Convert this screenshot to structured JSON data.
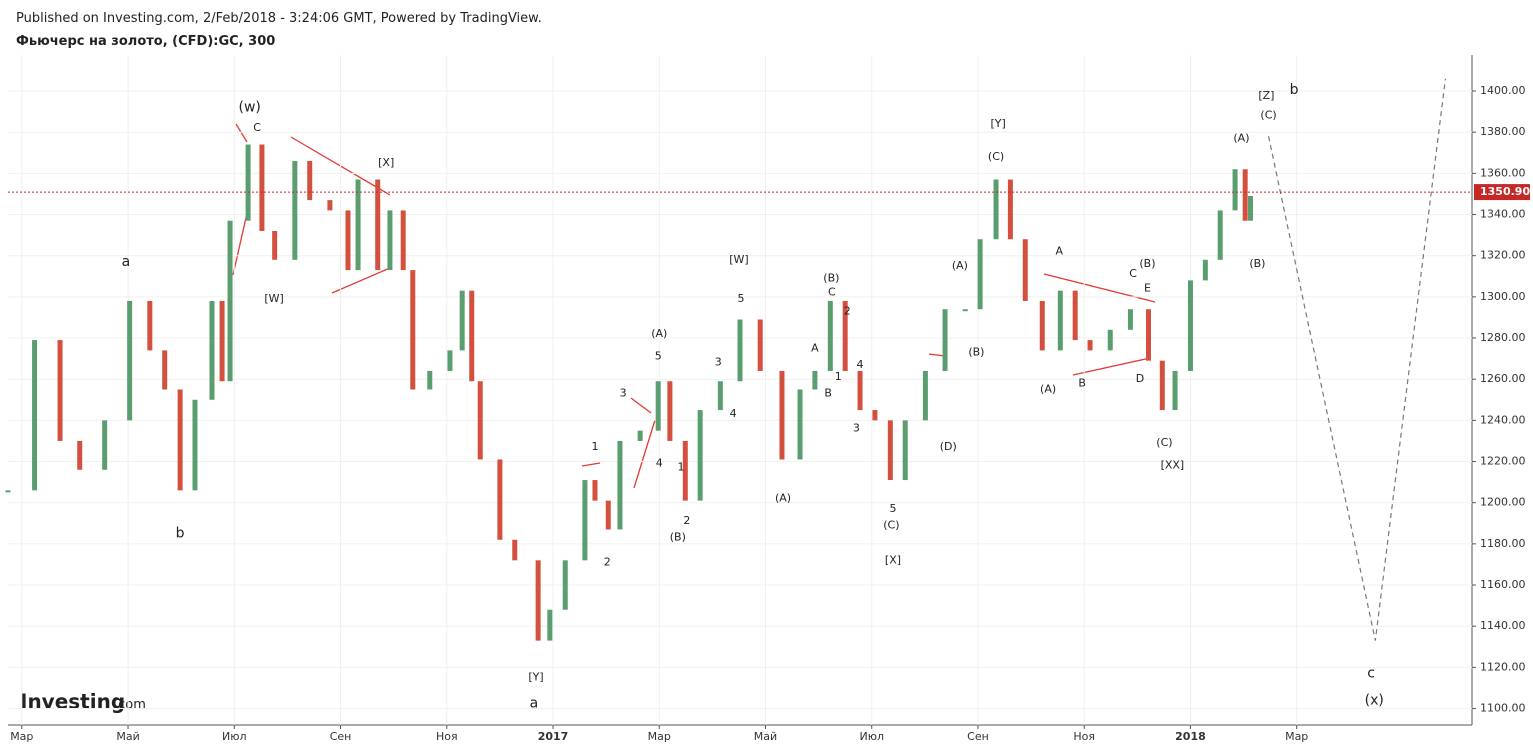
{
  "header": {
    "published": "Published on Investing.com, 2/Feb/2018 - 3:24:06 GMT, Powered by TradingView.",
    "logo": "Investing",
    "logo_suffix": ".com"
  },
  "chart_data": {
    "type": "candle-line",
    "title": "Фьючерс на золото, (CFD):GC, 300",
    "up_color": "#5a9e6f",
    "down_color": "#d3503f",
    "x": [
      -0.26,
      0.24,
      0.72,
      1.09,
      1.56,
      2.03,
      2.41,
      2.69,
      2.98,
      3.26,
      3.58,
      3.77,
      3.92,
      4.26,
      4.52,
      4.76,
      5.14,
      5.42,
      5.8,
      6.14,
      6.33,
      6.7,
      6.93,
      7.18,
      7.36,
      7.68,
      8.06,
      8.29,
      8.47,
      8.63,
      9.0,
      9.28,
      9.72,
      9.94,
      10.23,
      10.6,
      10.79,
      11.04,
      11.26,
      11.64,
      11.98,
      12.2,
      12.49,
      12.77,
      13.15,
      13.52,
      13.9,
      14.31,
      14.65,
      14.93,
      15.22,
      15.5,
      15.78,
      16.06,
      16.35,
      16.63,
      17.01,
      17.38,
      17.76,
      18.04,
      18.34,
      18.61,
      18.89,
      19.21,
      19.55,
      19.83,
      20.11,
      20.49,
      20.87,
      21.21,
      21.47,
      21.71,
      22.0,
      22.28,
      22.56,
      22.84,
      23.03,
      23.13
    ],
    "values": [
      1206,
      1279,
      1230,
      1216,
      1240,
      1298,
      1274,
      1255,
      1206,
      1250,
      1298,
      1259,
      1337,
      1374,
      1332,
      1318,
      1366,
      1347,
      1342,
      1313,
      1357,
      1313,
      1342,
      1313,
      1255,
      1264,
      1274,
      1303,
      1259,
      1221,
      1182,
      1172,
      1133,
      1148,
      1172,
      1211,
      1201,
      1187,
      1230,
      1235,
      1259,
      1230,
      1201,
      1245,
      1259,
      1289,
      1264,
      1221,
      1255,
      1264,
      1298,
      1264,
      1245,
      1240,
      1211,
      1240,
      1264,
      1294,
      1294,
      1328,
      1357,
      1328,
      1298,
      1274,
      1303,
      1279,
      1274,
      1284,
      1294,
      1269,
      1245,
      1264,
      1308,
      1318,
      1342,
      1362,
      1337,
      1349
    ],
    "last_price": {
      "value": 1350.9,
      "label": "1350.90"
    },
    "last_price_color": "#c62828",
    "projection": {
      "x": [
        23.47,
        25.48,
        26.8
      ],
      "values": [
        1378,
        1133,
        1406
      ]
    },
    "xlim": [
      -0.26,
      27.3
    ],
    "ylim": [
      1092,
      1417.5
    ],
    "xticks": [
      {
        "value": 0,
        "label": "Мар"
      },
      {
        "value": 2,
        "label": "Май"
      },
      {
        "value": 4,
        "label": "Июл"
      },
      {
        "value": 6,
        "label": "Сен"
      },
      {
        "value": 8,
        "label": "Ноя"
      },
      {
        "value": 10,
        "label": "2017"
      },
      {
        "value": 12,
        "label": "Мар"
      },
      {
        "value": 14,
        "label": "Май"
      },
      {
        "value": 16,
        "label": "Июл"
      },
      {
        "value": 18,
        "label": "Сен"
      },
      {
        "value": 20,
        "label": "Ноя"
      },
      {
        "value": 22,
        "label": "2018"
      },
      {
        "value": 24,
        "label": "Мар"
      }
    ],
    "yticks": [
      {
        "value": 1100,
        "label": "1100.00"
      },
      {
        "value": 1120,
        "label": "1120.00"
      },
      {
        "value": 1140,
        "label": "1140.00"
      },
      {
        "value": 1160,
        "label": "1160.00"
      },
      {
        "value": 1180,
        "label": "1180.00"
      },
      {
        "value": 1200,
        "label": "1200.00"
      },
      {
        "value": 1220,
        "label": "1220.00"
      },
      {
        "value": 1240,
        "label": "1240.00"
      },
      {
        "value": 1260,
        "label": "1260.00"
      },
      {
        "value": 1280,
        "label": "1280.00"
      },
      {
        "value": 1300,
        "label": "1300.00"
      },
      {
        "value": 1320,
        "label": "1320.00"
      },
      {
        "value": 1340,
        "label": "1340.00"
      },
      {
        "value": 1360,
        "label": "1360.00"
      },
      {
        "value": 1380,
        "label": "1380.00"
      },
      {
        "value": 1400,
        "label": "1400.00"
      }
    ],
    "grid": true,
    "annotations": [
      {
        "text": "(w)",
        "x": 4.29,
        "y": 1392
      },
      {
        "text": "C",
        "x": 4.43,
        "y": 1382
      },
      {
        "text": "a",
        "x": 1.96,
        "y": 1317
      },
      {
        "text": "b",
        "x": 2.98,
        "y": 1185
      },
      {
        "text": "[W]",
        "x": 4.75,
        "y": 1299
      },
      {
        "text": "[X]",
        "x": 6.86,
        "y": 1365
      },
      {
        "text": "[Y]",
        "x": 9.68,
        "y": 1115
      },
      {
        "text": "a",
        "x": 9.64,
        "y": 1102.5
      },
      {
        "text": "1",
        "x": 10.79,
        "y": 1227
      },
      {
        "text": "2",
        "x": 11.02,
        "y": 1171
      },
      {
        "text": "3",
        "x": 11.32,
        "y": 1253
      },
      {
        "text": "4",
        "x": 12.0,
        "y": 1219
      },
      {
        "text": "(A)",
        "x": 12.0,
        "y": 1282
      },
      {
        "text": "5",
        "x": 11.98,
        "y": 1271
      },
      {
        "text": "1",
        "x": 12.41,
        "y": 1217
      },
      {
        "text": "2",
        "x": 12.52,
        "y": 1191
      },
      {
        "text": "(B)",
        "x": 12.35,
        "y": 1183
      },
      {
        "text": "3",
        "x": 13.11,
        "y": 1268
      },
      {
        "text": "4",
        "x": 13.39,
        "y": 1243
      },
      {
        "text": "[W]",
        "x": 13.5,
        "y": 1318
      },
      {
        "text": "5",
        "x": 13.54,
        "y": 1299
      },
      {
        "text": "(A)",
        "x": 14.33,
        "y": 1202
      },
      {
        "text": "A",
        "x": 14.93,
        "y": 1275
      },
      {
        "text": "B",
        "x": 15.18,
        "y": 1253
      },
      {
        "text": "(B)",
        "x": 15.24,
        "y": 1309
      },
      {
        "text": "C",
        "x": 15.25,
        "y": 1302
      },
      {
        "text": "2",
        "x": 15.54,
        "y": 1293
      },
      {
        "text": "1",
        "x": 15.37,
        "y": 1261
      },
      {
        "text": "4",
        "x": 15.78,
        "y": 1267
      },
      {
        "text": "3",
        "x": 15.71,
        "y": 1236
      },
      {
        "text": "5",
        "x": 16.4,
        "y": 1197
      },
      {
        "text": "(C)",
        "x": 16.37,
        "y": 1189
      },
      {
        "text": "[X]",
        "x": 16.4,
        "y": 1172
      },
      {
        "text": "(D)",
        "x": 17.44,
        "y": 1227
      },
      {
        "text": "(A)",
        "x": 17.66,
        "y": 1315
      },
      {
        "text": "(B)",
        "x": 17.97,
        "y": 1273
      },
      {
        "text": "[Y]",
        "x": 18.38,
        "y": 1384
      },
      {
        "text": "(C)",
        "x": 18.34,
        "y": 1368
      },
      {
        "text": "A",
        "x": 19.53,
        "y": 1322
      },
      {
        "text": "(A)",
        "x": 19.32,
        "y": 1255
      },
      {
        "text": "B",
        "x": 19.96,
        "y": 1258
      },
      {
        "text": "C",
        "x": 20.92,
        "y": 1311
      },
      {
        "text": "(B)",
        "x": 21.19,
        "y": 1316
      },
      {
        "text": "E",
        "x": 21.19,
        "y": 1304
      },
      {
        "text": "D",
        "x": 21.05,
        "y": 1260
      },
      {
        "text": "(C)",
        "x": 21.51,
        "y": 1229
      },
      {
        "text": "[XX]",
        "x": 21.66,
        "y": 1218
      },
      {
        "text": "(A)",
        "x": 22.96,
        "y": 1377
      },
      {
        "text": "(B)",
        "x": 23.26,
        "y": 1316
      },
      {
        "text": "[Z]",
        "x": 23.43,
        "y": 1397.5
      },
      {
        "text": "(C)",
        "x": 23.47,
        "y": 1388
      },
      {
        "text": "b",
        "x": 23.95,
        "y": 1400.5
      },
      {
        "text": "c",
        "x": 25.4,
        "y": 1117
      },
      {
        "text": "(x)",
        "x": 25.46,
        "y": 1104
      }
    ]
  }
}
